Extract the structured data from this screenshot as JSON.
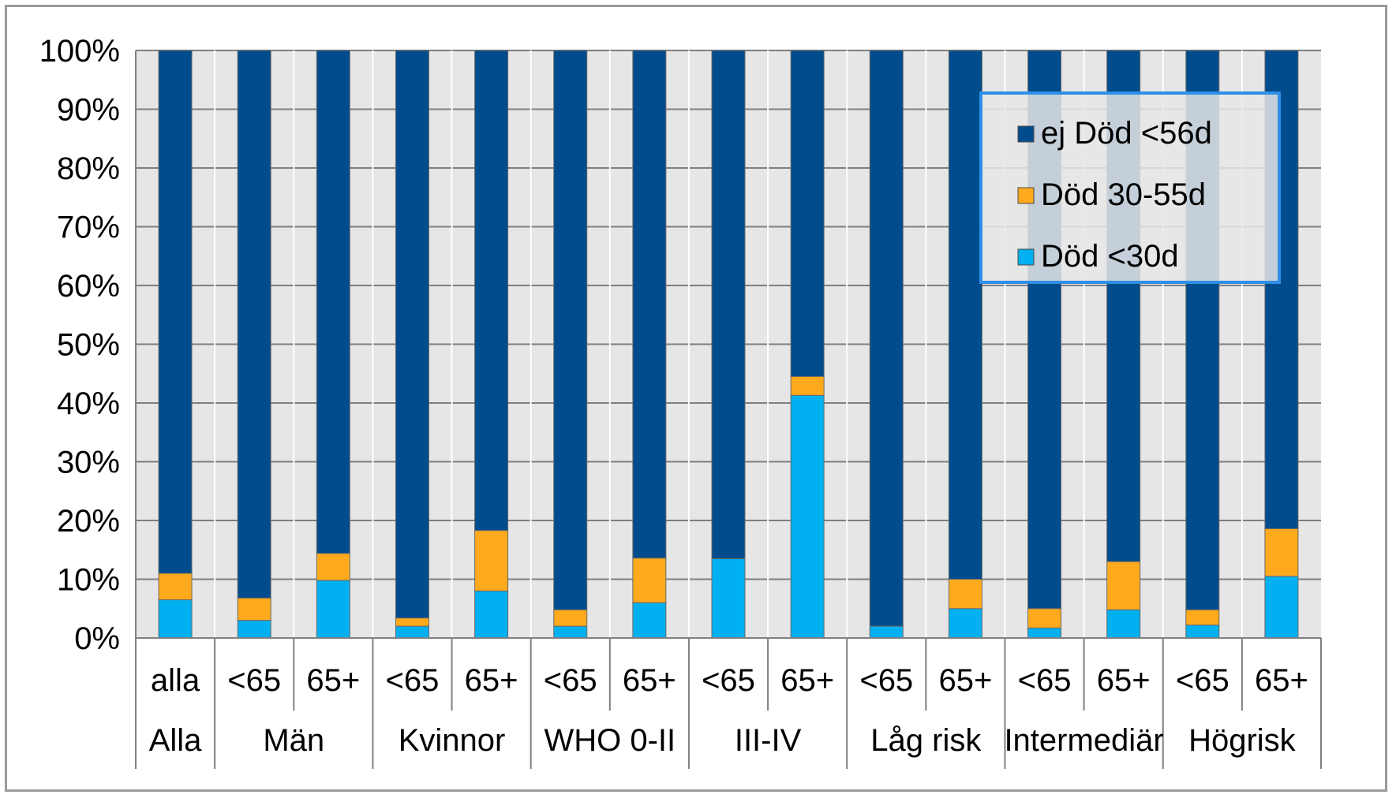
{
  "chart_data": {
    "type": "bar",
    "stacked": true,
    "percent_stacked": true,
    "title": "",
    "xlabel": "",
    "ylabel": "",
    "ylim": [
      0,
      100
    ],
    "yticks": [
      "0%",
      "10%",
      "20%",
      "30%",
      "40%",
      "50%",
      "60%",
      "70%",
      "80%",
      "90%",
      "100%"
    ],
    "grid": true,
    "legend_position": "top-right",
    "categories": [
      "alla",
      "<65",
      "65+",
      "<65",
      "65+",
      "<65",
      "65+",
      "<65",
      "65+",
      "<65",
      "65+",
      "<65",
      "65+",
      "<65",
      "65+"
    ],
    "groups": [
      {
        "label": "Alla",
        "span": 1
      },
      {
        "label": "Män",
        "span": 2
      },
      {
        "label": "Kvinnor",
        "span": 2
      },
      {
        "label": "WHO 0-II",
        "span": 2
      },
      {
        "label": "III-IV",
        "span": 2
      },
      {
        "label": "Låg risk",
        "span": 2
      },
      {
        "label": "Intermediär",
        "span": 2
      },
      {
        "label": "Högrisk",
        "span": 2
      }
    ],
    "series": [
      {
        "name": "Död <30d",
        "color": "#00b0f0",
        "values": [
          6.5,
          3.0,
          9.8,
          2.0,
          8.0,
          2.0,
          6.0,
          13.5,
          41.3,
          2.0,
          5.0,
          1.7,
          4.8,
          2.2,
          10.5
        ]
      },
      {
        "name": "Död 30-55d",
        "color": "#ffaa1d",
        "values": [
          4.5,
          3.8,
          4.6,
          1.4,
          10.3,
          2.8,
          7.6,
          0.0,
          3.2,
          0.0,
          5.0,
          3.3,
          8.2,
          2.6,
          8.1
        ]
      },
      {
        "name": "ej Död <56d",
        "color": "#004c8c",
        "values": [
          89.0,
          93.2,
          85.6,
          96.6,
          81.7,
          95.2,
          86.4,
          86.5,
          55.5,
          98.0,
          90.0,
          95.0,
          87.0,
          95.2,
          81.4
        ]
      }
    ],
    "legend_order": [
      "ej Död <56d",
      "Död 30-55d",
      "Död <30d"
    ]
  }
}
